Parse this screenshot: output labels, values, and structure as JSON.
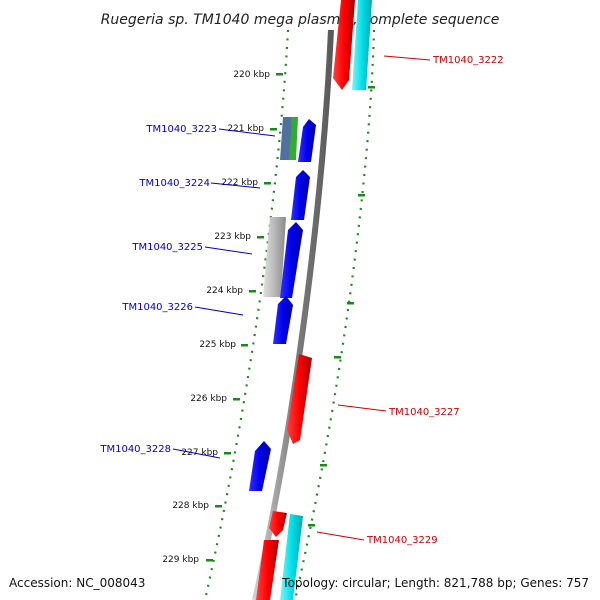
{
  "title": "Ruegeria sp. TM1040 mega plasmid, complete sequence",
  "footer": {
    "accession": "Accession: NC_008043",
    "summary": "Topology: circular; Length: 821,788 bp; Genes: 757"
  },
  "scale": {
    "ticks": [
      {
        "label": "220 kbp"
      },
      {
        "label": "221 kbp"
      },
      {
        "label": "222 kbp"
      },
      {
        "label": "223 kbp"
      },
      {
        "label": "224 kbp"
      },
      {
        "label": "225 kbp"
      },
      {
        "label": "226 kbp"
      },
      {
        "label": "227 kbp"
      },
      {
        "label": "228 kbp"
      },
      {
        "label": "229 kbp"
      }
    ]
  },
  "genes": [
    {
      "id": "TM1040_3222",
      "strand": "+",
      "color": "#cc0000"
    },
    {
      "id": "TM1040_3223",
      "strand": "-",
      "color": "#0000cc"
    },
    {
      "id": "TM1040_3224",
      "strand": "-",
      "color": "#0000cc"
    },
    {
      "id": "TM1040_3225",
      "strand": "-",
      "color": "#0000cc"
    },
    {
      "id": "TM1040_3226",
      "strand": "-",
      "color": "#0000cc"
    },
    {
      "id": "TM1040_3227",
      "strand": "+",
      "color": "#cc0000"
    },
    {
      "id": "TM1040_3228",
      "strand": "-",
      "color": "#0000cc"
    },
    {
      "id": "TM1040_3229",
      "strand": "+",
      "color": "#cc0000"
    }
  ],
  "colors": {
    "backbone": "#808080",
    "ring_dots": "#1a8a1a",
    "forward_cds": "#ff0000",
    "reverse_cds": "#0000ff",
    "rna": "#00e5ee",
    "gray_feature": "#b0b0b0",
    "green_feature": "#33aa33",
    "slate_feature": "#5070a0"
  }
}
